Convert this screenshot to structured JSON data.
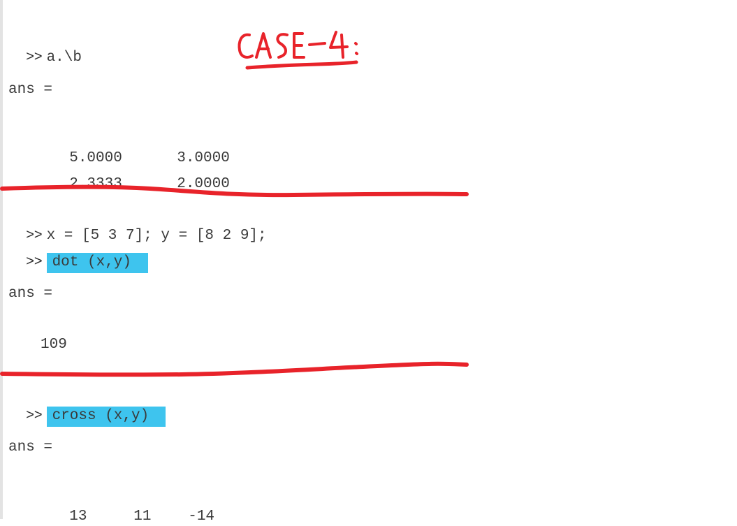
{
  "console": {
    "prompt": ">>",
    "block1": {
      "command": "a.\\b",
      "ans_label": "ans =",
      "rows": [
        [
          "5.0000",
          "3.0000"
        ],
        [
          "2.3333",
          "2.0000"
        ]
      ]
    },
    "block2": {
      "command1": "x = [5 3 7]; y = [8 2 9];",
      "command2": "dot (x,y)",
      "ans_label": "ans =",
      "value": "109"
    },
    "block3": {
      "command": "cross (x,y)",
      "ans_label": "ans =",
      "values": [
        "13",
        "11",
        "-14"
      ]
    }
  },
  "annotation": {
    "case_label": "CASE-4:",
    "ink_color": "#e8232a",
    "highlight_color": "#3ec4ee"
  }
}
